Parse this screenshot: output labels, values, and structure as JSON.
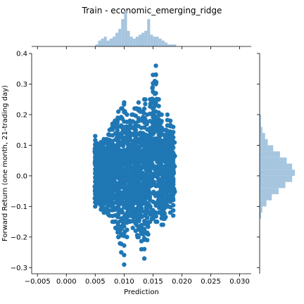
{
  "chart_data": {
    "type": "scatter",
    "title": "Train - economic_emerging_ridge",
    "xlabel": "Prediction",
    "ylabel": "Forward Return (one month, 21-trading day)",
    "xlim": [
      -0.006,
      0.032
    ],
    "ylim": [
      -0.32,
      0.4
    ],
    "x_ticks": [
      -0.005,
      0.0,
      0.005,
      0.01,
      0.015,
      0.02,
      0.025,
      0.03
    ],
    "x_tick_labels": [
      "−0.005",
      "0.000",
      "0.005",
      "0.010",
      "0.015",
      "0.020",
      "0.025",
      "0.030"
    ],
    "y_ticks": [
      -0.3,
      -0.2,
      -0.1,
      0.0,
      0.1,
      0.2,
      0.3,
      0.4
    ],
    "y_tick_labels": [
      "−0.3",
      "−0.2",
      "−0.1",
      "0.0",
      "0.1",
      "0.2",
      "0.3",
      "0.4"
    ],
    "point_color": "#1f77b4",
    "marginal_color": "#a6c5df",
    "x_spread": [
      0.0049,
      0.0188
    ],
    "columns": [
      {
        "x": 0.005,
        "ymin": -0.1,
        "ymax": 0.13
      },
      {
        "x": 0.0055,
        "ymin": -0.09,
        "ymax": 0.1
      },
      {
        "x": 0.006,
        "ymin": -0.11,
        "ymax": 0.11
      },
      {
        "x": 0.0065,
        "ymin": -0.12,
        "ymax": 0.12
      },
      {
        "x": 0.007,
        "ymin": -0.12,
        "ymax": 0.12
      },
      {
        "x": 0.0075,
        "ymin": -0.13,
        "ymax": 0.15
      },
      {
        "x": 0.008,
        "ymin": -0.15,
        "ymax": 0.17
      },
      {
        "x": 0.0085,
        "ymin": -0.17,
        "ymax": 0.18
      },
      {
        "x": 0.009,
        "ymin": -0.2,
        "ymax": 0.21
      },
      {
        "x": 0.0095,
        "ymin": -0.25,
        "ymax": 0.22
      },
      {
        "x": 0.01,
        "ymin": -0.29,
        "ymax": 0.24
      },
      {
        "x": 0.0105,
        "ymin": -0.2,
        "ymax": 0.2
      },
      {
        "x": 0.011,
        "ymin": -0.15,
        "ymax": 0.18
      },
      {
        "x": 0.0115,
        "ymin": -0.17,
        "ymax": 0.2
      },
      {
        "x": 0.012,
        "ymin": -0.18,
        "ymax": 0.22
      },
      {
        "x": 0.0125,
        "ymin": -0.2,
        "ymax": 0.24
      },
      {
        "x": 0.013,
        "ymin": -0.24,
        "ymax": 0.21
      },
      {
        "x": 0.0135,
        "ymin": -0.27,
        "ymax": 0.25
      },
      {
        "x": 0.014,
        "ymin": -0.21,
        "ymax": 0.2
      },
      {
        "x": 0.0145,
        "ymin": -0.15,
        "ymax": 0.25
      },
      {
        "x": 0.015,
        "ymin": -0.14,
        "ymax": 0.33
      },
      {
        "x": 0.0155,
        "ymin": -0.15,
        "ymax": 0.36
      },
      {
        "x": 0.016,
        "ymin": -0.12,
        "ymax": 0.25
      },
      {
        "x": 0.0165,
        "ymin": -0.16,
        "ymax": 0.2
      },
      {
        "x": 0.017,
        "ymin": -0.14,
        "ymax": 0.15
      },
      {
        "x": 0.0175,
        "ymin": -0.1,
        "ymax": 0.2
      },
      {
        "x": 0.018,
        "ymin": -0.12,
        "ymax": 0.18
      },
      {
        "x": 0.0185,
        "ymin": -0.13,
        "ymax": 0.16
      }
    ],
    "marginal_x": {
      "bin_start": 0.0045,
      "bin_width": 0.0005,
      "counts": [
        0,
        1,
        3,
        4,
        5,
        3,
        4,
        5,
        7,
        9,
        14,
        18,
        8,
        5,
        4,
        5,
        6,
        7,
        8,
        14,
        6,
        5,
        5,
        4,
        3,
        2,
        1,
        1,
        1
      ]
    },
    "marginal_y": {
      "bin_start": -0.32,
      "bin_width": 0.02,
      "counts": [
        0,
        0,
        0,
        0,
        0,
        0,
        0,
        0,
        0,
        1,
        2,
        5,
        9,
        14,
        19,
        24,
        26,
        24,
        20,
        15,
        10,
        6,
        4,
        2,
        1,
        1,
        0,
        0,
        0,
        0,
        0,
        0,
        0,
        0,
        0,
        0
      ]
    }
  }
}
